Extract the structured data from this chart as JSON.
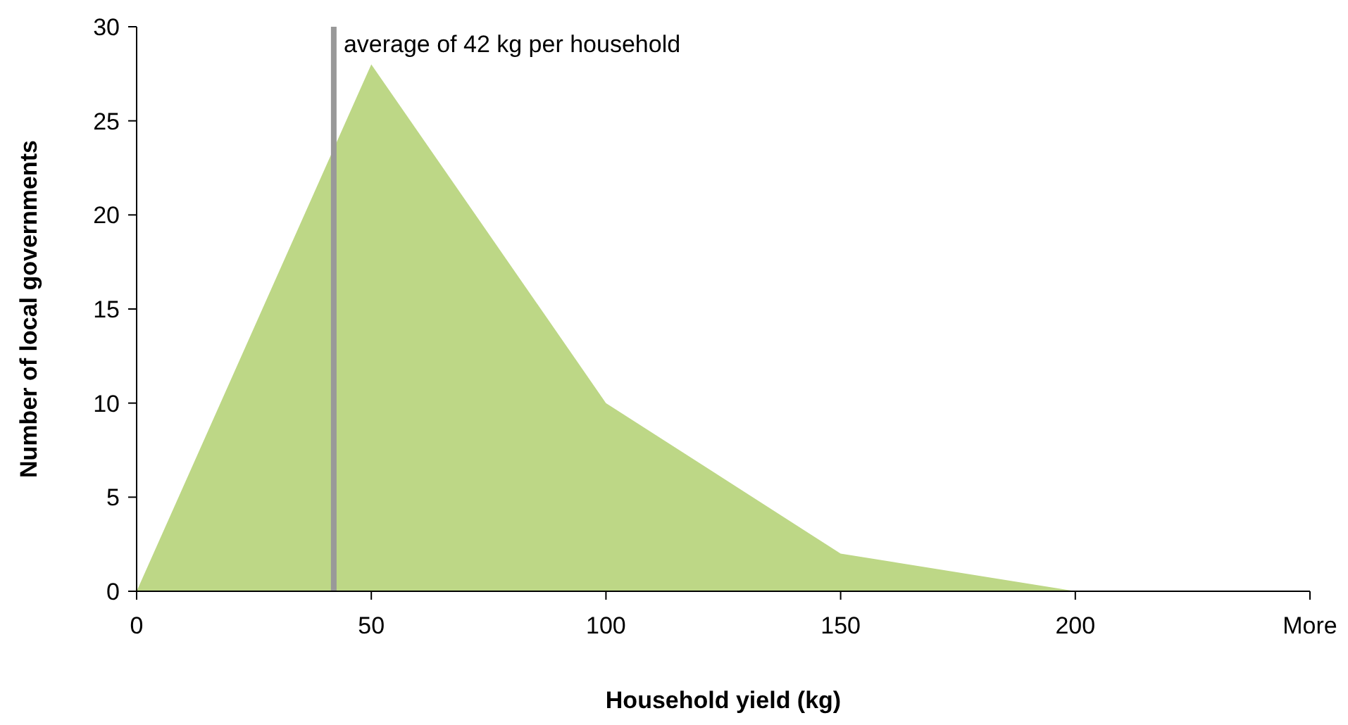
{
  "chart_data": {
    "type": "area",
    "xlabel": "Household yield (kg)",
    "ylabel": "Number of local governments",
    "x": [
      0,
      50,
      100,
      150,
      200,
      250
    ],
    "series": [
      {
        "color": "#bdd786",
        "values": [
          0,
          28,
          10,
          2,
          0,
          0
        ]
      }
    ],
    "xlim": [
      0,
      250
    ],
    "xticks": [
      0,
      50,
      100,
      150,
      200,
      {
        "value": 250,
        "label": "More"
      }
    ],
    "ylim": [
      0,
      30
    ],
    "yticks": [
      0,
      5,
      10,
      15,
      20,
      25,
      30
    ],
    "ref_lines": [
      {
        "axis": "x",
        "value": 42,
        "label": "average of 42 kg per household",
        "color": "#999999"
      }
    ]
  }
}
